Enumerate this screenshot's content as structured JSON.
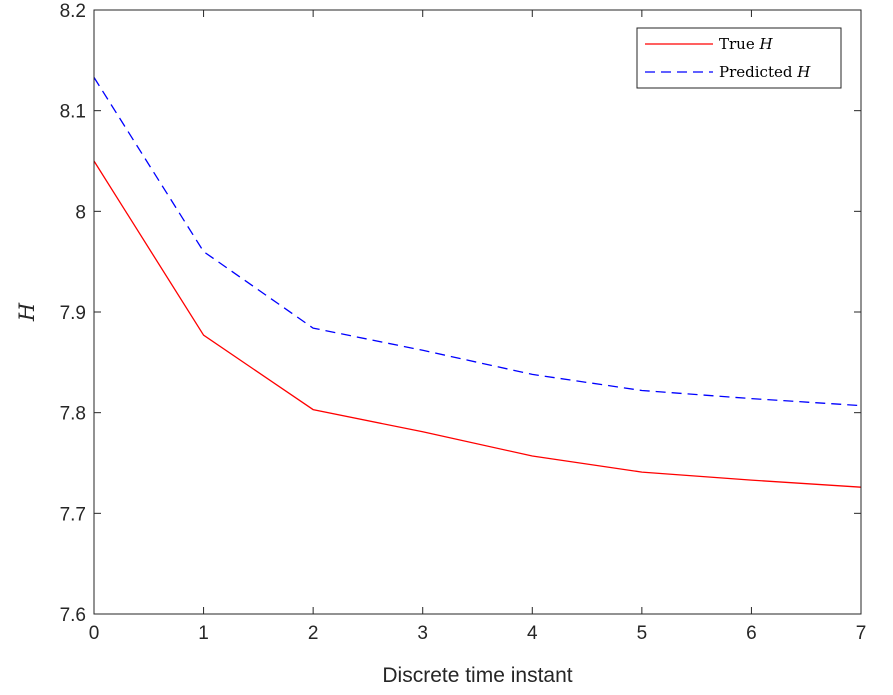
{
  "chart_data": {
    "type": "line",
    "xlabel": "Discrete time instant",
    "ylabel": "H",
    "xlim": [
      0,
      7
    ],
    "ylim": [
      7.6,
      8.2
    ],
    "xticks": [
      0,
      1,
      2,
      3,
      4,
      5,
      6,
      7
    ],
    "xtick_labels": [
      "0",
      "1",
      "2",
      "3",
      "4",
      "5",
      "6",
      "7"
    ],
    "yticks": [
      7.6,
      7.7,
      7.8,
      7.9,
      8.0,
      8.1,
      8.2
    ],
    "ytick_labels": [
      "7.6",
      "7.7",
      "7.8",
      "7.9",
      "8",
      "8.1",
      "8.2"
    ],
    "grid": false,
    "legend_position": "top-right",
    "x": [
      0,
      1,
      2,
      3,
      4,
      5,
      6,
      7
    ],
    "series": [
      {
        "name": "True H",
        "legend_prefix": "True ",
        "legend_symbol": "H",
        "color": "#ff0000",
        "style": "solid",
        "values": [
          8.05,
          7.877,
          7.803,
          7.781,
          7.757,
          7.741,
          7.733,
          7.726
        ]
      },
      {
        "name": "Predicted H",
        "legend_prefix": "Predicted ",
        "legend_symbol": "H",
        "color": "#0000ff",
        "style": "dashed",
        "values": [
          8.133,
          7.96,
          7.884,
          7.862,
          7.838,
          7.822,
          7.814,
          7.807
        ]
      }
    ]
  }
}
